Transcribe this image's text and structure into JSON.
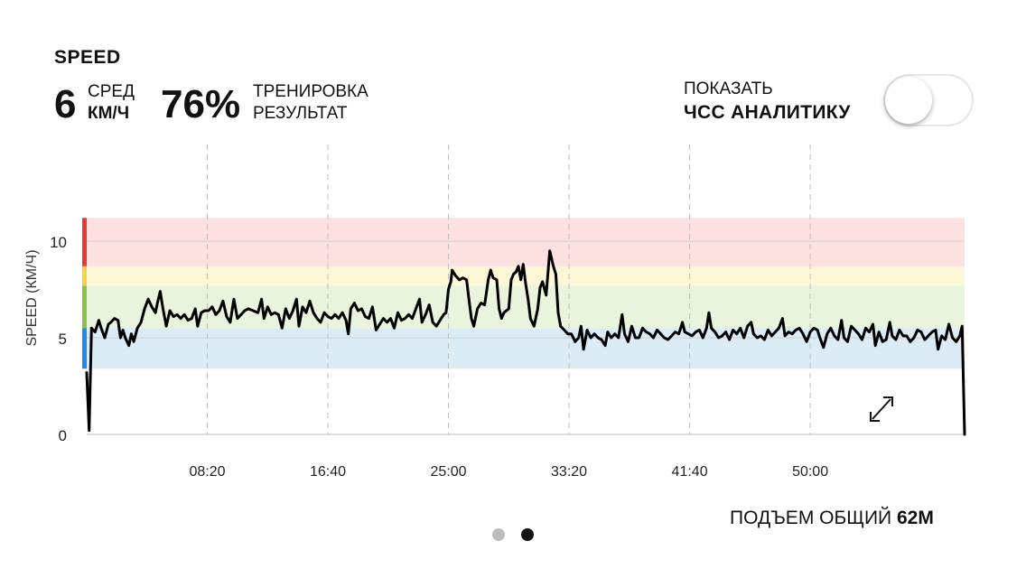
{
  "header": {
    "metric_title": "SPEED",
    "avg_value": "6",
    "avg_label": "СРЕД",
    "avg_unit": "КМ/Ч",
    "training_value": "76%",
    "training_label1": "ТРЕНИРОВКА",
    "training_label2": "РЕЗУЛЬТАТ"
  },
  "toggle": {
    "label1": "ПОКАЗАТЬ",
    "label2": "ЧСС АНАЛИТИКУ",
    "state": "off"
  },
  "footer": {
    "ascent_label": "ПОДЪЕМ ОБЩИЙ",
    "ascent_value": "62М"
  },
  "pager": {
    "pages": 2,
    "active": 2
  },
  "colors": {
    "zone_red": "#fde0e0",
    "zone_yellow": "#fdf7d6",
    "zone_green": "#e9f4dc",
    "zone_blue": "#dcecf7",
    "edge_red": "#e53935",
    "edge_yellow": "#f6d23f",
    "edge_green": "#8bc34a",
    "edge_blue": "#1e88e5",
    "line": "#000000"
  },
  "icons": {
    "expand": "expand-arrows-icon"
  },
  "chart_data": {
    "type": "line",
    "ylabel": "SPEED (КМ/Ч)",
    "xlabel": "",
    "x_unit": "seconds",
    "xlim": [
      0,
      3640
    ],
    "ylim": [
      0,
      11
    ],
    "yticks": [
      0,
      5,
      10
    ],
    "xticks": [
      {
        "value": 500,
        "label": "08:20"
      },
      {
        "value": 1000,
        "label": "16:40"
      },
      {
        "value": 1500,
        "label": "25:00"
      },
      {
        "value": 2000,
        "label": "33:20"
      },
      {
        "value": 2500,
        "label": "41:40"
      },
      {
        "value": 3000,
        "label": "50:00"
      }
    ],
    "grid": "vertical dashed",
    "zones": [
      {
        "from": 3.4,
        "to": 5.5,
        "color": "blue"
      },
      {
        "from": 5.5,
        "to": 7.7,
        "color": "green"
      },
      {
        "from": 7.7,
        "to": 8.7,
        "color": "yellow"
      },
      {
        "from": 8.7,
        "to": 11.2,
        "color": "red"
      }
    ],
    "series": [
      {
        "values": [
          [
            0,
            3.2
          ],
          [
            10,
            0.2
          ],
          [
            20,
            5.5
          ],
          [
            35,
            5.3
          ],
          [
            50,
            5.9
          ],
          [
            60,
            5.5
          ],
          [
            75,
            5.0
          ],
          [
            90,
            5.7
          ],
          [
            100,
            5.8
          ],
          [
            115,
            6.0
          ],
          [
            130,
            5.9
          ],
          [
            140,
            5.0
          ],
          [
            150,
            5.4
          ],
          [
            160,
            5.0
          ],
          [
            175,
            4.6
          ],
          [
            185,
            5.2
          ],
          [
            195,
            4.8
          ],
          [
            210,
            5.5
          ],
          [
            225,
            5.8
          ],
          [
            240,
            6.5
          ],
          [
            255,
            7.0
          ],
          [
            270,
            6.6
          ],
          [
            285,
            6.3
          ],
          [
            295,
            6.9
          ],
          [
            305,
            7.4
          ],
          [
            315,
            6.6
          ],
          [
            330,
            5.6
          ],
          [
            345,
            6.4
          ],
          [
            360,
            6.1
          ],
          [
            375,
            6.2
          ],
          [
            390,
            6.0
          ],
          [
            405,
            6.2
          ],
          [
            420,
            5.9
          ],
          [
            435,
            6.0
          ],
          [
            450,
            6.5
          ],
          [
            460,
            5.6
          ],
          [
            475,
            6.3
          ],
          [
            490,
            6.4
          ],
          [
            505,
            6.4
          ],
          [
            520,
            6.6
          ],
          [
            535,
            6.2
          ],
          [
            550,
            6.4
          ],
          [
            565,
            6.9
          ],
          [
            580,
            6.1
          ],
          [
            595,
            5.8
          ],
          [
            610,
            7.0
          ],
          [
            625,
            6.0
          ],
          [
            640,
            6.2
          ],
          [
            655,
            6.4
          ],
          [
            670,
            6.5
          ],
          [
            690,
            6.4
          ],
          [
            710,
            6.3
          ],
          [
            725,
            7.0
          ],
          [
            735,
            6.0
          ],
          [
            750,
            6.6
          ],
          [
            765,
            6.2
          ],
          [
            780,
            6.3
          ],
          [
            795,
            6.2
          ],
          [
            810,
            5.5
          ],
          [
            825,
            6.5
          ],
          [
            840,
            6.0
          ],
          [
            855,
            6.4
          ],
          [
            870,
            7.0
          ],
          [
            880,
            5.6
          ],
          [
            895,
            6.6
          ],
          [
            910,
            6.3
          ],
          [
            925,
            6.9
          ],
          [
            940,
            6.3
          ],
          [
            955,
            6.0
          ],
          [
            970,
            5.8
          ],
          [
            985,
            6.3
          ],
          [
            1000,
            6.1
          ],
          [
            1015,
            6.0
          ],
          [
            1030,
            6.2
          ],
          [
            1045,
            6.0
          ],
          [
            1060,
            6.3
          ],
          [
            1075,
            5.9
          ],
          [
            1085,
            5.2
          ],
          [
            1095,
            6.5
          ],
          [
            1110,
            6.8
          ],
          [
            1125,
            6.4
          ],
          [
            1140,
            6.5
          ],
          [
            1155,
            6.1
          ],
          [
            1170,
            6.0
          ],
          [
            1185,
            6.6
          ],
          [
            1200,
            5.4
          ],
          [
            1215,
            5.7
          ],
          [
            1230,
            6.0
          ],
          [
            1245,
            5.8
          ],
          [
            1260,
            6.0
          ],
          [
            1275,
            5.5
          ],
          [
            1290,
            6.3
          ],
          [
            1305,
            5.9
          ],
          [
            1320,
            6.0
          ],
          [
            1335,
            6.2
          ],
          [
            1350,
            6.0
          ],
          [
            1365,
            6.5
          ],
          [
            1380,
            7.0
          ],
          [
            1390,
            5.8
          ],
          [
            1405,
            6.2
          ],
          [
            1420,
            6.7
          ],
          [
            1435,
            5.8
          ],
          [
            1450,
            5.6
          ],
          [
            1465,
            5.9
          ],
          [
            1480,
            6.2
          ],
          [
            1490,
            6.3
          ],
          [
            1500,
            7.5
          ],
          [
            1510,
            7.9
          ],
          [
            1515,
            8.5
          ],
          [
            1530,
            8.2
          ],
          [
            1545,
            8.0
          ],
          [
            1560,
            8.1
          ],
          [
            1575,
            8.0
          ],
          [
            1585,
            7.0
          ],
          [
            1595,
            6.0
          ],
          [
            1605,
            5.6
          ],
          [
            1620,
            6.5
          ],
          [
            1635,
            6.8
          ],
          [
            1650,
            6.7
          ],
          [
            1665,
            8.0
          ],
          [
            1675,
            8.5
          ],
          [
            1685,
            8.1
          ],
          [
            1700,
            8.0
          ],
          [
            1710,
            6.5
          ],
          [
            1720,
            6.0
          ],
          [
            1730,
            6.3
          ],
          [
            1740,
            6.4
          ],
          [
            1750,
            6.5
          ],
          [
            1760,
            8.0
          ],
          [
            1770,
            8.3
          ],
          [
            1780,
            8.4
          ],
          [
            1790,
            8.7
          ],
          [
            1800,
            8.0
          ],
          [
            1810,
            8.8
          ],
          [
            1820,
            7.8
          ],
          [
            1830,
            7.0
          ],
          [
            1840,
            6.0
          ],
          [
            1855,
            5.6
          ],
          [
            1870,
            6.5
          ],
          [
            1880,
            7.6
          ],
          [
            1890,
            7.9
          ],
          [
            1905,
            7.2
          ],
          [
            1920,
            9.5
          ],
          [
            1935,
            8.7
          ],
          [
            1945,
            8.3
          ],
          [
            1955,
            6.3
          ],
          [
            1965,
            5.6
          ],
          [
            1980,
            5.4
          ],
          [
            1995,
            5.2
          ],
          [
            2010,
            5.2
          ],
          [
            2025,
            4.8
          ],
          [
            2040,
            5.0
          ],
          [
            2050,
            5.6
          ],
          [
            2060,
            4.4
          ],
          [
            2075,
            5.4
          ],
          [
            2090,
            5.0
          ],
          [
            2105,
            5.2
          ],
          [
            2120,
            5.0
          ],
          [
            2135,
            4.9
          ],
          [
            2150,
            4.6
          ],
          [
            2160,
            5.3
          ],
          [
            2175,
            5.0
          ],
          [
            2190,
            5.2
          ],
          [
            2205,
            5.0
          ],
          [
            2220,
            6.2
          ],
          [
            2230,
            5.2
          ],
          [
            2245,
            4.8
          ],
          [
            2260,
            5.6
          ],
          [
            2275,
            5.0
          ],
          [
            2290,
            5.0
          ],
          [
            2305,
            5.5
          ],
          [
            2320,
            5.3
          ],
          [
            2335,
            5.2
          ],
          [
            2350,
            5.0
          ],
          [
            2365,
            5.4
          ],
          [
            2380,
            5.2
          ],
          [
            2395,
            5.0
          ],
          [
            2410,
            4.9
          ],
          [
            2425,
            5.1
          ],
          [
            2440,
            5.3
          ],
          [
            2455,
            5.2
          ],
          [
            2470,
            5.8
          ],
          [
            2480,
            5.3
          ],
          [
            2495,
            5.2
          ],
          [
            2510,
            5.1
          ],
          [
            2525,
            5.3
          ],
          [
            2540,
            5.4
          ],
          [
            2555,
            5.0
          ],
          [
            2570,
            5.5
          ],
          [
            2580,
            6.3
          ],
          [
            2590,
            5.5
          ],
          [
            2605,
            5.3
          ],
          [
            2620,
            5.0
          ],
          [
            2635,
            5.1
          ],
          [
            2650,
            5.3
          ],
          [
            2665,
            4.9
          ],
          [
            2680,
            5.4
          ],
          [
            2695,
            5.2
          ],
          [
            2710,
            5.5
          ],
          [
            2725,
            5.0
          ],
          [
            2740,
            5.6
          ],
          [
            2755,
            5.8
          ],
          [
            2765,
            5.2
          ],
          [
            2780,
            5.0
          ],
          [
            2795,
            5.1
          ],
          [
            2810,
            4.9
          ],
          [
            2825,
            5.4
          ],
          [
            2840,
            5.1
          ],
          [
            2855,
            5.3
          ],
          [
            2870,
            5.5
          ],
          [
            2885,
            6.0
          ],
          [
            2895,
            5.1
          ],
          [
            2910,
            5.3
          ],
          [
            2925,
            5.2
          ],
          [
            2940,
            5.4
          ],
          [
            2955,
            5.5
          ],
          [
            2970,
            5.2
          ],
          [
            2985,
            4.8
          ],
          [
            3000,
            5.3
          ],
          [
            3015,
            5.5
          ],
          [
            3030,
            5.4
          ],
          [
            3040,
            5.0
          ],
          [
            3055,
            4.5
          ],
          [
            3070,
            5.2
          ],
          [
            3085,
            5.5
          ],
          [
            3100,
            5.1
          ],
          [
            3115,
            4.9
          ],
          [
            3130,
            5.9
          ],
          [
            3140,
            5.0
          ],
          [
            3155,
            4.8
          ],
          [
            3170,
            5.6
          ],
          [
            3185,
            5.4
          ],
          [
            3200,
            5.2
          ],
          [
            3215,
            4.9
          ],
          [
            3230,
            5.5
          ],
          [
            3245,
            5.3
          ],
          [
            3260,
            5.7
          ],
          [
            3270,
            4.6
          ],
          [
            3285,
            5.3
          ],
          [
            3300,
            4.8
          ],
          [
            3315,
            4.9
          ],
          [
            3330,
            5.8
          ],
          [
            3340,
            5.1
          ],
          [
            3355,
            4.9
          ],
          [
            3370,
            5.4
          ],
          [
            3385,
            5.1
          ],
          [
            3400,
            5.1
          ],
          [
            3415,
            4.8
          ],
          [
            3430,
            5.0
          ],
          [
            3445,
            5.4
          ],
          [
            3460,
            5.3
          ],
          [
            3475,
            4.9
          ],
          [
            3490,
            5.1
          ],
          [
            3505,
            5.3
          ],
          [
            3520,
            5.4
          ],
          [
            3530,
            4.4
          ],
          [
            3545,
            5.1
          ],
          [
            3560,
            4.9
          ],
          [
            3575,
            5.7
          ],
          [
            3590,
            5.0
          ],
          [
            3605,
            4.8
          ],
          [
            3620,
            5.1
          ],
          [
            3630,
            5.6
          ],
          [
            3640,
            0.0
          ]
        ]
      }
    ]
  }
}
